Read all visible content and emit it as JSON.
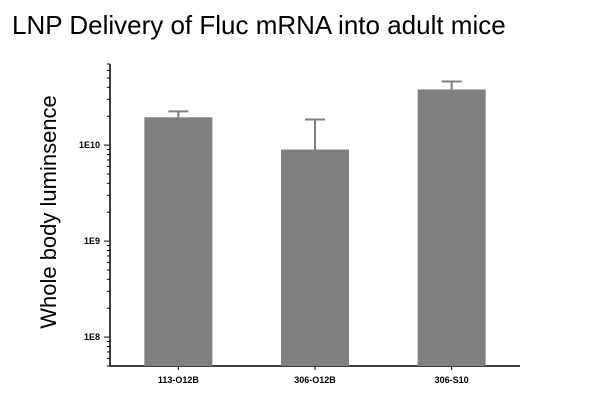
{
  "chart_data": {
    "type": "bar",
    "title": "LNP Delivery of Fluc mRNA into adult mice",
    "xlabel": "",
    "ylabel": "Whole body luminsence",
    "yscale": "log",
    "ylim": [
      50000000,
      70000000000
    ],
    "yticks": [
      {
        "value": 100000000,
        "label": "1E8"
      },
      {
        "value": 1000000000,
        "label": "1E9"
      },
      {
        "value": 10000000000,
        "label": "1E10"
      }
    ],
    "categories": [
      "113-O12B",
      "306-O12B",
      "306-S10"
    ],
    "values": [
      19500000000,
      9000000000,
      38000000000
    ],
    "error_upper": [
      22500000000,
      18500000000,
      46000000000
    ],
    "grid": false,
    "legend": "none",
    "colors": {
      "bar": "#808080",
      "error": "#808080",
      "axis": "#000000"
    }
  }
}
